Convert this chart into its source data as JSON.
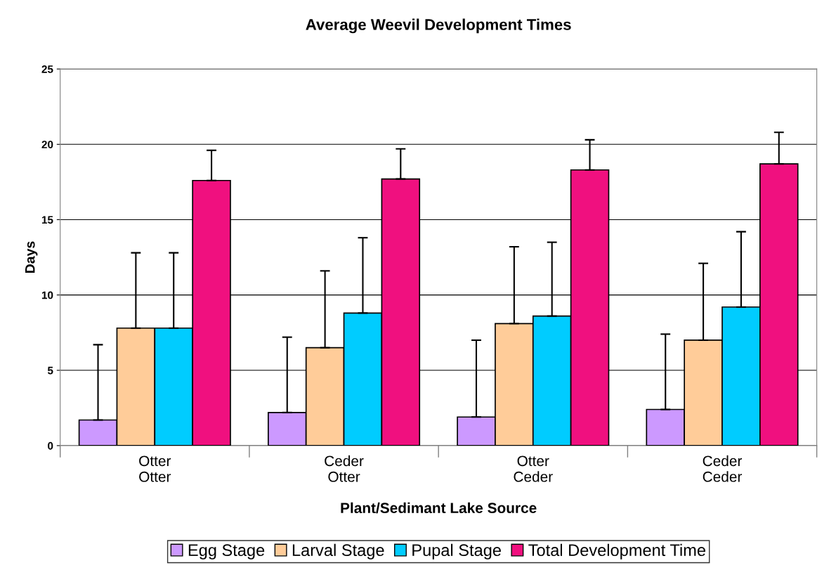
{
  "chart_data": {
    "type": "bar",
    "title": "Average Weevil Development Times",
    "xlabel": "Plant/Sedimant Lake Source",
    "ylabel": "Days",
    "categories": [
      "Otter\nOtter",
      "Ceder\nOtter",
      "Otter\nCeder",
      "Ceder\nCeder"
    ],
    "series": [
      {
        "name": "Egg Stage",
        "color": "#cc99ff",
        "values": [
          1.7,
          2.2,
          1.9,
          2.4
        ],
        "errors": [
          [
            1.7,
            6.7
          ],
          [
            2.2,
            7.2
          ],
          [
            1.9,
            7.0
          ],
          [
            2.4,
            7.4
          ]
        ]
      },
      {
        "name": "Larval Stage",
        "color": "#ffcc99",
        "values": [
          7.8,
          6.5,
          8.1,
          7.0
        ],
        "errors": [
          [
            7.8,
            12.8
          ],
          [
            6.5,
            11.6
          ],
          [
            8.1,
            13.2
          ],
          [
            7.0,
            12.1
          ]
        ]
      },
      {
        "name": "Pupal Stage",
        "color": "#00ccff",
        "values": [
          7.8,
          8.8,
          8.6,
          9.2
        ],
        "errors": [
          [
            7.8,
            12.8
          ],
          [
            8.8,
            13.8
          ],
          [
            8.6,
            13.5
          ],
          [
            9.2,
            14.2
          ]
        ]
      },
      {
        "name": "Total Development Time",
        "color": "#f0107f",
        "values": [
          17.6,
          17.7,
          18.3,
          18.7
        ],
        "errors": [
          [
            17.6,
            19.6
          ],
          [
            17.7,
            19.7
          ],
          [
            18.3,
            20.3
          ],
          [
            18.7,
            20.8
          ]
        ]
      }
    ],
    "ylim": [
      0,
      25
    ],
    "yticks": [
      0,
      5,
      10,
      15,
      20,
      25
    ],
    "grid": "y",
    "legend": "bottom"
  }
}
